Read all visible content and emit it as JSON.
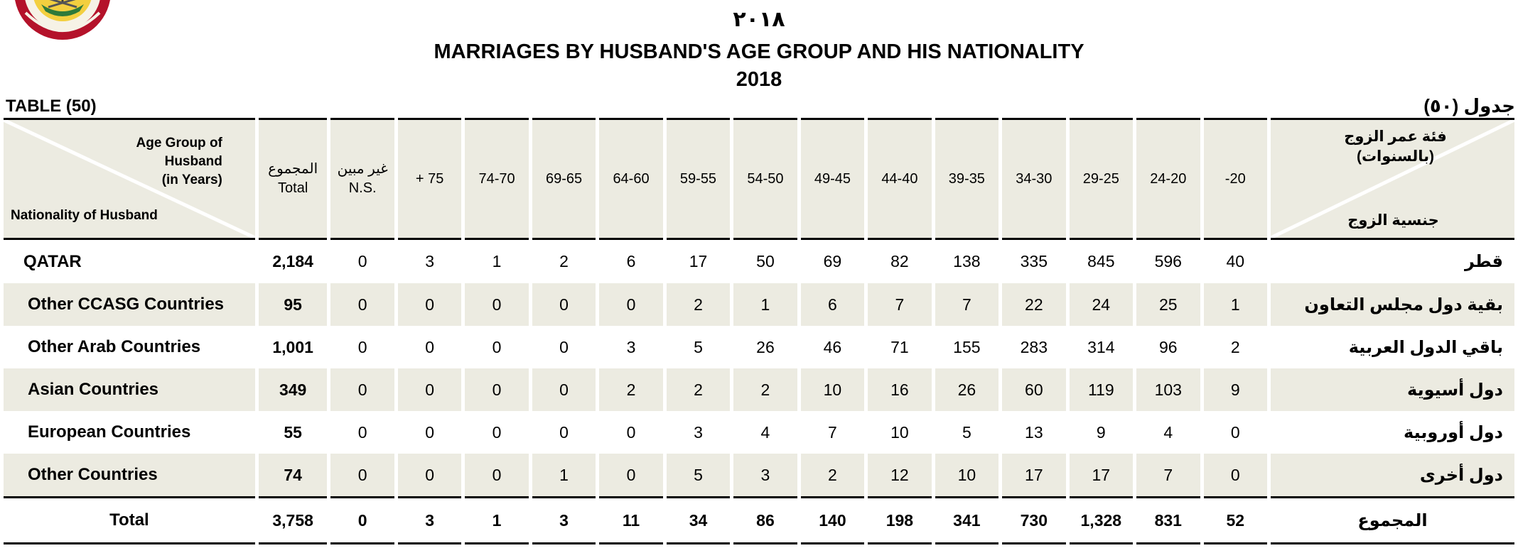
{
  "header": {
    "year_ar": "٢٠١٨",
    "title": "MARRIAGES BY HUSBAND'S AGE GROUP AND HIS NATIONALITY",
    "year": "2018",
    "table_en": "TABLE (50)",
    "table_ar": "جدول (٥٠)"
  },
  "logo": {
    "icon": "qatar-psa-emblem-icon",
    "colors": {
      "ring": "#b4122a",
      "fill": "#f3cf3f"
    }
  },
  "corner_en": {
    "age": [
      "Age Group of",
      "Husband",
      "(in Years)"
    ],
    "nationality": "Nationality of Husband"
  },
  "corner_ar": {
    "age": [
      "فئة عمر الزوج",
      "(بالسنوات)"
    ],
    "nationality": "جنسية الزوج"
  },
  "columns": {
    "total_ar": "المجموع",
    "total_en": "Total",
    "ns_ar": "غير مبين",
    "ns_en": "N.S.",
    "ages": [
      "+ 75",
      "74-70",
      "69-65",
      "64-60",
      "59-55",
      "54-50",
      "49-45",
      "44-40",
      "39-35",
      "34-30",
      "29-25",
      "24-20",
      "-20"
    ]
  },
  "rows": [
    {
      "en": "QATAR",
      "ar": "قطر",
      "total": "2,184",
      "ns": "0",
      "values": [
        "3",
        "1",
        "2",
        "6",
        "17",
        "50",
        "69",
        "82",
        "138",
        "335",
        "845",
        "596",
        "40"
      ]
    },
    {
      "en": "Other CCASG Countries",
      "ar": "بقية دول مجلس التعاون",
      "total": "95",
      "ns": "0",
      "values": [
        "0",
        "0",
        "0",
        "0",
        "2",
        "1",
        "6",
        "7",
        "7",
        "22",
        "24",
        "25",
        "1"
      ]
    },
    {
      "en": "Other Arab Countries",
      "ar": "باقي الدول العربية",
      "total": "1,001",
      "ns": "0",
      "values": [
        "0",
        "0",
        "0",
        "3",
        "5",
        "26",
        "46",
        "71",
        "155",
        "283",
        "314",
        "96",
        "2"
      ]
    },
    {
      "en": "Asian Countries",
      "ar": "دول أسيوية",
      "total": "349",
      "ns": "0",
      "values": [
        "0",
        "0",
        "0",
        "2",
        "2",
        "2",
        "10",
        "16",
        "26",
        "60",
        "119",
        "103",
        "9"
      ]
    },
    {
      "en": "European Countries",
      "ar": "دول أوروبية",
      "total": "55",
      "ns": "0",
      "values": [
        "0",
        "0",
        "0",
        "0",
        "3",
        "4",
        "7",
        "10",
        "5",
        "13",
        "9",
        "4",
        "0"
      ]
    },
    {
      "en": "Other Countries",
      "ar": "دول أخرى",
      "total": "74",
      "ns": "0",
      "values": [
        "0",
        "0",
        "1",
        "0",
        "5",
        "3",
        "2",
        "12",
        "10",
        "17",
        "17",
        "7",
        "0"
      ]
    }
  ],
  "totals": {
    "en": "Total",
    "ar": "المجموع",
    "total": "3,758",
    "ns": "0",
    "values": [
      "3",
      "1",
      "3",
      "11",
      "34",
      "86",
      "140",
      "198",
      "341",
      "730",
      "1,328",
      "831",
      "52"
    ]
  }
}
